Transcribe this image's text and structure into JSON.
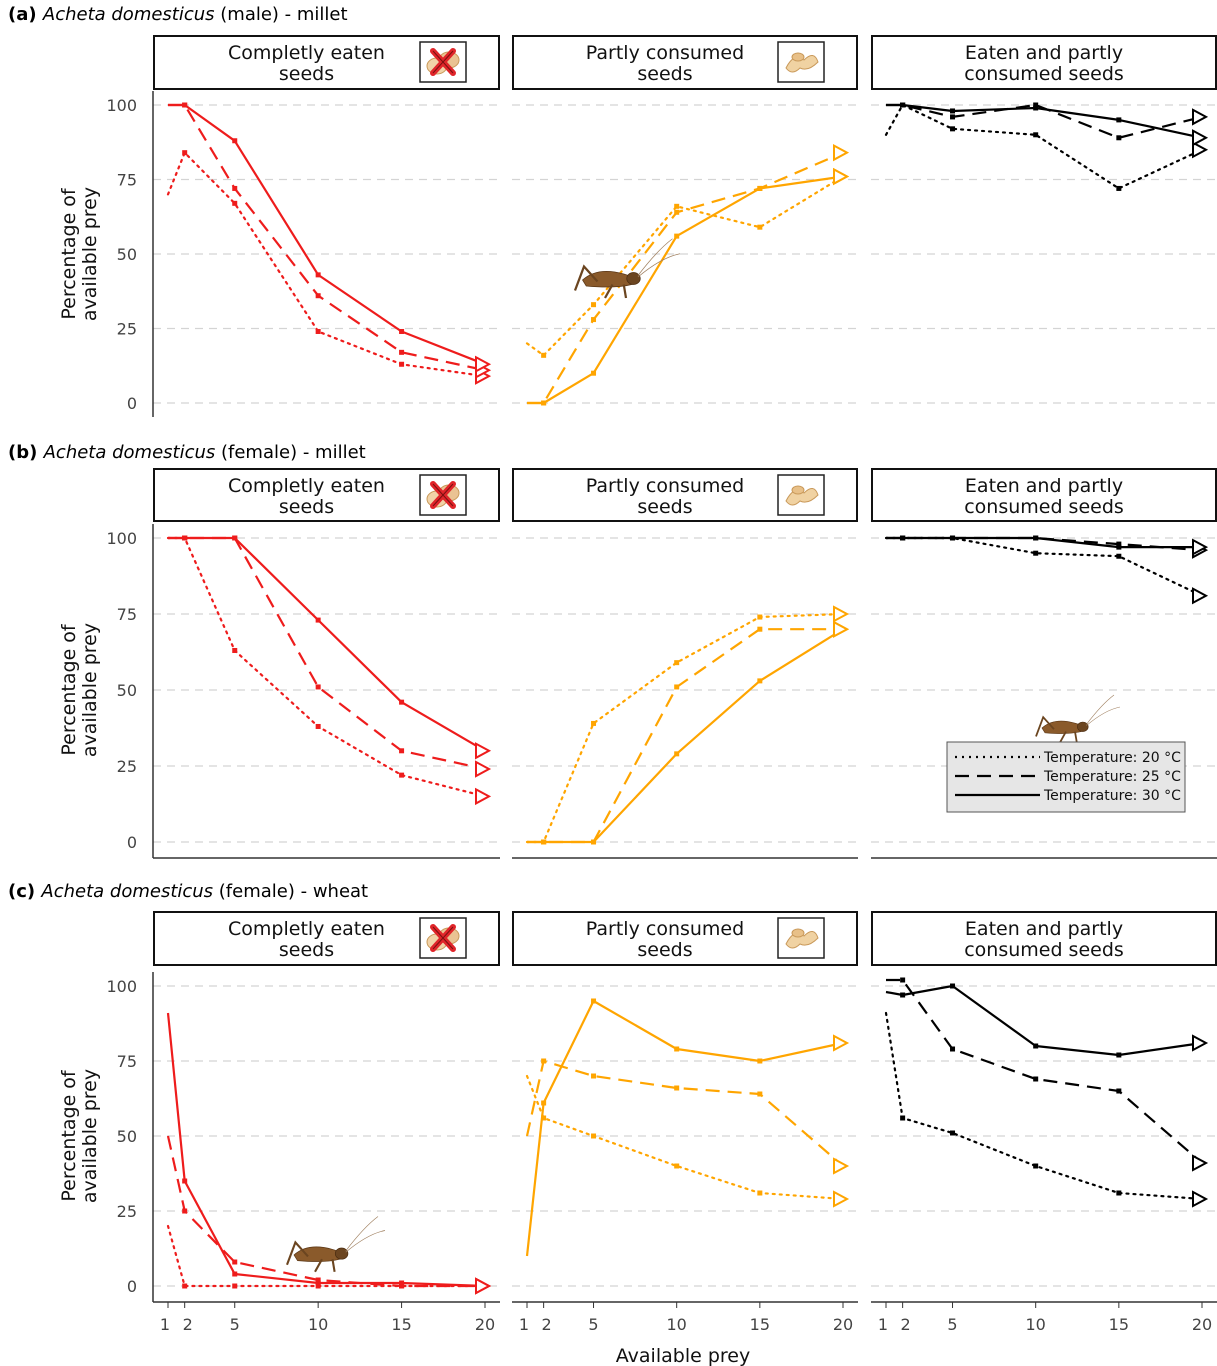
{
  "figure": {
    "ylabel_line1": "Percentage of",
    "ylabel_line2": "available prey",
    "xlabel": "Available prey",
    "x_ticks": [
      1,
      2,
      5,
      10,
      15,
      20
    ],
    "y_ticks": [
      0,
      25,
      50,
      75,
      100
    ],
    "legend": [
      {
        "label": "Temperature: 20 °C",
        "style": "dotted"
      },
      {
        "label": "Temperature: 25 °C",
        "style": "dashed"
      },
      {
        "label": "Temperature: 30 °C",
        "style": "solid"
      }
    ],
    "colors": {
      "completely": "#ee1c1c",
      "partly": "#ffa500",
      "total": "#000000"
    }
  },
  "chart_data": [
    {
      "type": "line",
      "panel_label": "(a)",
      "title_species": "Acheta domesticus",
      "title_rest": " (male) - millet",
      "xlabel": "Available prey",
      "ylabel": "Percentage of available prey",
      "ylim": [
        0,
        100
      ],
      "facets": [
        {
          "strip": [
            "Completly eaten",
            "seeds"
          ],
          "color": "#ee1c1c",
          "icon": "eaten-seed-icon",
          "series": [
            {
              "name": "Temperature: 20 °C",
              "style": "dotted",
              "x": [
                1,
                2,
                5,
                10,
                15,
                20
              ],
              "y": [
                70,
                84,
                67,
                24,
                13,
                9
              ]
            },
            {
              "name": "Temperature: 25 °C",
              "style": "dashed",
              "x": [
                1,
                2,
                5,
                10,
                15,
                20
              ],
              "y": [
                100,
                100,
                72,
                36,
                17,
                11
              ]
            },
            {
              "name": "Temperature: 30 °C",
              "style": "solid",
              "x": [
                1,
                2,
                5,
                10,
                15,
                20
              ],
              "y": [
                100,
                100,
                88,
                43,
                24,
                13
              ]
            }
          ]
        },
        {
          "strip": [
            "Partly consumed",
            "seeds"
          ],
          "color": "#ffa500",
          "icon": "partly-seed-icon",
          "series": [
            {
              "name": "Temperature: 20 °C",
              "style": "dotted",
              "x": [
                1,
                2,
                5,
                10,
                15,
                20
              ],
              "y": [
                20,
                16,
                33,
                66,
                59,
                76
              ]
            },
            {
              "name": "Temperature: 25 °C",
              "style": "dashed",
              "x": [
                1,
                2,
                5,
                10,
                15,
                20
              ],
              "y": [
                0,
                0,
                28,
                64,
                72,
                84
              ]
            },
            {
              "name": "Temperature: 30 °C",
              "style": "solid",
              "x": [
                1,
                2,
                5,
                10,
                15,
                20
              ],
              "y": [
                0,
                0,
                10,
                56,
                72,
                76
              ]
            }
          ]
        },
        {
          "strip": [
            "Eaten and partly",
            "consumed seeds"
          ],
          "color": "#000000",
          "icon": "",
          "series": [
            {
              "name": "Temperature: 20 °C",
              "style": "dotted",
              "x": [
                1,
                2,
                5,
                10,
                15,
                20
              ],
              "y": [
                90,
                100,
                92,
                90,
                72,
                85
              ]
            },
            {
              "name": "Temperature: 25 °C",
              "style": "dashed",
              "x": [
                1,
                2,
                5,
                10,
                15,
                20
              ],
              "y": [
                100,
                100,
                96,
                100,
                89,
                96
              ]
            },
            {
              "name": "Temperature: 30 °C",
              "style": "solid",
              "x": [
                1,
                2,
                5,
                10,
                15,
                20
              ],
              "y": [
                100,
                100,
                98,
                99,
                95,
                89
              ]
            }
          ]
        }
      ]
    },
    {
      "type": "line",
      "panel_label": "(b)",
      "title_species": "Acheta domesticus",
      "title_rest": " (female) - millet",
      "xlabel": "Available prey",
      "ylabel": "Percentage of available prey",
      "ylim": [
        0,
        100
      ],
      "facets": [
        {
          "strip": [
            "Completly eaten",
            "seeds"
          ],
          "color": "#ee1c1c",
          "icon": "eaten-seed-icon",
          "series": [
            {
              "name": "Temperature: 20 °C",
              "style": "dotted",
              "x": [
                1,
                2,
                5,
                10,
                15,
                20
              ],
              "y": [
                100,
                100,
                63,
                38,
                22,
                15
              ]
            },
            {
              "name": "Temperature: 25 °C",
              "style": "dashed",
              "x": [
                1,
                2,
                5,
                10,
                15,
                20
              ],
              "y": [
                100,
                100,
                100,
                51,
                30,
                24
              ]
            },
            {
              "name": "Temperature: 30 °C",
              "style": "solid",
              "x": [
                1,
                2,
                5,
                10,
                15,
                20
              ],
              "y": [
                100,
                100,
                100,
                73,
                46,
                30
              ]
            }
          ]
        },
        {
          "strip": [
            "Partly consumed",
            "seeds"
          ],
          "color": "#ffa500",
          "icon": "partly-seed-icon",
          "series": [
            {
              "name": "Temperature: 20 °C",
              "style": "dotted",
              "x": [
                1,
                2,
                5,
                10,
                15,
                20
              ],
              "y": [
                0,
                0,
                39,
                59,
                74,
                75
              ]
            },
            {
              "name": "Temperature: 25 °C",
              "style": "dashed",
              "x": [
                1,
                2,
                5,
                10,
                15,
                20
              ],
              "y": [
                0,
                0,
                0,
                51,
                70,
                70
              ]
            },
            {
              "name": "Temperature: 30 °C",
              "style": "solid",
              "x": [
                1,
                2,
                5,
                10,
                15,
                20
              ],
              "y": [
                0,
                0,
                0,
                29,
                53,
                70
              ]
            }
          ]
        },
        {
          "strip": [
            "Eaten and partly",
            "consumed seeds"
          ],
          "color": "#000000",
          "icon": "",
          "series": [
            {
              "name": "Temperature: 20 °C",
              "style": "dotted",
              "x": [
                1,
                2,
                5,
                10,
                15,
                20
              ],
              "y": [
                100,
                100,
                100,
                95,
                94,
                81
              ]
            },
            {
              "name": "Temperature: 25 °C",
              "style": "dashed",
              "x": [
                1,
                2,
                5,
                10,
                15,
                20
              ],
              "y": [
                100,
                100,
                100,
                100,
                98,
                96
              ]
            },
            {
              "name": "Temperature: 30 °C",
              "style": "solid",
              "x": [
                1,
                2,
                5,
                10,
                15,
                20
              ],
              "y": [
                100,
                100,
                100,
                100,
                97,
                97
              ]
            }
          ]
        }
      ]
    },
    {
      "type": "line",
      "panel_label": "(c)",
      "title_species": "Acheta domesticus",
      "title_rest": " (female) - wheat",
      "xlabel": "Available prey",
      "ylabel": "Percentage of available prey",
      "ylim": [
        0,
        100
      ],
      "facets": [
        {
          "strip": [
            "Completly eaten",
            "seeds"
          ],
          "color": "#ee1c1c",
          "icon": "eaten-seed-icon",
          "series": [
            {
              "name": "Temperature: 20 °C",
              "style": "dotted",
              "x": [
                1,
                2,
                5,
                10,
                15,
                20
              ],
              "y": [
                20,
                0,
                0,
                0,
                0,
                0
              ]
            },
            {
              "name": "Temperature: 25 °C",
              "style": "dashed",
              "x": [
                1,
                2,
                5,
                10,
                15,
                20
              ],
              "y": [
                50,
                25,
                8,
                2,
                0,
                0
              ]
            },
            {
              "name": "Temperature: 30 °C",
              "style": "solid",
              "x": [
                1,
                2,
                5,
                10,
                15,
                20
              ],
              "y": [
                91,
                35,
                4,
                1,
                1,
                0
              ]
            }
          ]
        },
        {
          "strip": [
            "Partly consumed",
            "seeds"
          ],
          "color": "#ffa500",
          "icon": "partly-seed-icon",
          "series": [
            {
              "name": "Temperature: 20 °C",
              "style": "dotted",
              "x": [
                1,
                2,
                5,
                10,
                15,
                20
              ],
              "y": [
                70,
                56,
                50,
                40,
                31,
                29
              ]
            },
            {
              "name": "Temperature: 25 °C",
              "style": "dashed",
              "x": [
                1,
                2,
                5,
                10,
                15,
                20
              ],
              "y": [
                50,
                75,
                70,
                66,
                64,
                40
              ]
            },
            {
              "name": "Temperature: 30 °C",
              "style": "solid",
              "x": [
                1,
                2,
                5,
                10,
                15,
                20
              ],
              "y": [
                10,
                61,
                95,
                79,
                75,
                81
              ]
            }
          ]
        },
        {
          "strip": [
            "Eaten and partly",
            "consumed seeds"
          ],
          "color": "#000000",
          "icon": "",
          "series": [
            {
              "name": "Temperature: 20 °C",
              "style": "dotted",
              "x": [
                1,
                2,
                5,
                10,
                15,
                20
              ],
              "y": [
                91,
                56,
                51,
                40,
                31,
                29
              ]
            },
            {
              "name": "Temperature: 25 °C",
              "style": "dashed",
              "x": [
                1,
                2,
                5,
                10,
                15,
                20
              ],
              "y": [
                102,
                102,
                79,
                69,
                65,
                41
              ]
            },
            {
              "name": "Temperature: 30 °C",
              "style": "solid",
              "x": [
                1,
                2,
                5,
                10,
                15,
                20
              ],
              "y": [
                98,
                97,
                100,
                80,
                77,
                81
              ]
            }
          ]
        }
      ]
    }
  ]
}
